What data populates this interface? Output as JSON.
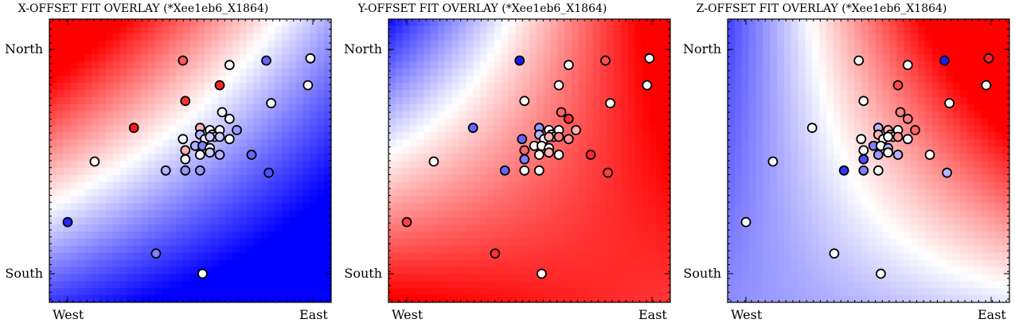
{
  "chart_data": [
    {
      "type": "scatter",
      "title": "X-OFFSET FIT OVERLAY (*Xee1eb6_X1864)",
      "x_ticks": [
        "West",
        "East"
      ],
      "y_ticks": [
        "North",
        "South"
      ],
      "colormap": [
        "#0000ff",
        "#ffffff",
        "#ff0000"
      ],
      "background_field": "blue bottom-left, red top-left, white diagonal band",
      "points": [
        {
          "x": 0.47,
          "y": 0.95,
          "v": 0.65
        },
        {
          "x": 0.66,
          "y": 0.93,
          "v": 0.0
        },
        {
          "x": 0.81,
          "y": 0.95,
          "v": -0.6
        },
        {
          "x": 0.99,
          "y": 0.96,
          "v": 0.0
        },
        {
          "x": 0.62,
          "y": 0.84,
          "v": 0.85
        },
        {
          "x": 0.98,
          "y": 0.84,
          "v": 0.0
        },
        {
          "x": 0.48,
          "y": 0.77,
          "v": 0.8
        },
        {
          "x": 0.83,
          "y": 0.76,
          "v": 0.0
        },
        {
          "x": 0.63,
          "y": 0.72,
          "v": 0.0
        },
        {
          "x": 0.66,
          "y": 0.69,
          "v": 0.0
        },
        {
          "x": 0.27,
          "y": 0.65,
          "v": 0.9
        },
        {
          "x": 0.54,
          "y": 0.65,
          "v": 0.3
        },
        {
          "x": 0.58,
          "y": 0.64,
          "v": 0.0
        },
        {
          "x": 0.62,
          "y": 0.64,
          "v": 0.0
        },
        {
          "x": 0.69,
          "y": 0.64,
          "v": -0.4
        },
        {
          "x": 0.54,
          "y": 0.62,
          "v": -0.3
        },
        {
          "x": 0.59,
          "y": 0.62,
          "v": 0.0
        },
        {
          "x": 0.6,
          "y": 0.61,
          "v": 0.0
        },
        {
          "x": 0.56,
          "y": 0.6,
          "v": 0.0
        },
        {
          "x": 0.58,
          "y": 0.61,
          "v": -0.2
        },
        {
          "x": 0.62,
          "y": 0.61,
          "v": -0.2
        },
        {
          "x": 0.47,
          "y": 0.6,
          "v": 0.0
        },
        {
          "x": 0.66,
          "y": 0.6,
          "v": 0.0
        },
        {
          "x": 0.52,
          "y": 0.57,
          "v": -0.3
        },
        {
          "x": 0.55,
          "y": 0.57,
          "v": -0.5
        },
        {
          "x": 0.58,
          "y": 0.56,
          "v": 0.0
        },
        {
          "x": 0.48,
          "y": 0.55,
          "v": 0.3
        },
        {
          "x": 0.58,
          "y": 0.54,
          "v": -0.2
        },
        {
          "x": 0.54,
          "y": 0.53,
          "v": 0.0
        },
        {
          "x": 0.62,
          "y": 0.53,
          "v": -0.3
        },
        {
          "x": 0.75,
          "y": 0.53,
          "v": -0.6
        },
        {
          "x": 0.48,
          "y": 0.51,
          "v": 0.0
        },
        {
          "x": 0.11,
          "y": 0.5,
          "v": 0.0
        },
        {
          "x": 0.4,
          "y": 0.46,
          "v": -0.3
        },
        {
          "x": 0.48,
          "y": 0.46,
          "v": -0.4
        },
        {
          "x": 0.54,
          "y": 0.46,
          "v": -0.4
        },
        {
          "x": 0.82,
          "y": 0.45,
          "v": -0.7
        },
        {
          "x": 0.0,
          "y": 0.23,
          "v": -0.85
        },
        {
          "x": 0.36,
          "y": 0.09,
          "v": -0.5
        },
        {
          "x": 0.55,
          "y": 0.0,
          "v": 0.0
        }
      ]
    },
    {
      "type": "scatter",
      "title": "Y-OFFSET FIT OVERLAY (*Xee1eb6_X1864)",
      "x_ticks": [
        "West",
        "East"
      ],
      "y_ticks": [
        "North",
        "South"
      ],
      "colormap": [
        "#0000ff",
        "#ffffff",
        "#ff0000"
      ],
      "background_field": "blue top-left, red bottom-left and right, white curved band",
      "points": [
        {
          "x": 0.46,
          "y": 0.95,
          "v": -0.9
        },
        {
          "x": 0.66,
          "y": 0.93,
          "v": 0.0
        },
        {
          "x": 0.81,
          "y": 0.95,
          "v": 0.7
        },
        {
          "x": 0.99,
          "y": 0.96,
          "v": 0.0
        },
        {
          "x": 0.62,
          "y": 0.84,
          "v": 0.0
        },
        {
          "x": 0.98,
          "y": 0.84,
          "v": 0.0
        },
        {
          "x": 0.48,
          "y": 0.77,
          "v": 0.0
        },
        {
          "x": 0.83,
          "y": 0.76,
          "v": 0.0
        },
        {
          "x": 0.63,
          "y": 0.72,
          "v": 0.6
        },
        {
          "x": 0.66,
          "y": 0.69,
          "v": 0.8
        },
        {
          "x": 0.27,
          "y": 0.65,
          "v": -0.6
        },
        {
          "x": 0.54,
          "y": 0.65,
          "v": -0.4
        },
        {
          "x": 0.58,
          "y": 0.64,
          "v": 0.0
        },
        {
          "x": 0.62,
          "y": 0.64,
          "v": 0.0
        },
        {
          "x": 0.69,
          "y": 0.64,
          "v": 0.3
        },
        {
          "x": 0.54,
          "y": 0.62,
          "v": -0.3
        },
        {
          "x": 0.59,
          "y": 0.62,
          "v": 0.0
        },
        {
          "x": 0.6,
          "y": 0.61,
          "v": 0.2
        },
        {
          "x": 0.56,
          "y": 0.6,
          "v": 0.0
        },
        {
          "x": 0.58,
          "y": 0.61,
          "v": 0.3
        },
        {
          "x": 0.62,
          "y": 0.61,
          "v": 0.5
        },
        {
          "x": 0.47,
          "y": 0.6,
          "v": -0.6
        },
        {
          "x": 0.66,
          "y": 0.6,
          "v": 0.4
        },
        {
          "x": 0.52,
          "y": 0.57,
          "v": 0.0
        },
        {
          "x": 0.55,
          "y": 0.57,
          "v": 0.0
        },
        {
          "x": 0.58,
          "y": 0.56,
          "v": 0.0
        },
        {
          "x": 0.48,
          "y": 0.55,
          "v": 0.6
        },
        {
          "x": 0.58,
          "y": 0.54,
          "v": 0.3
        },
        {
          "x": 0.54,
          "y": 0.53,
          "v": 0.0
        },
        {
          "x": 0.62,
          "y": 0.53,
          "v": 0.0
        },
        {
          "x": 0.75,
          "y": 0.53,
          "v": 0.85
        },
        {
          "x": 0.48,
          "y": 0.51,
          "v": -0.5
        },
        {
          "x": 0.11,
          "y": 0.5,
          "v": 0.0
        },
        {
          "x": 0.4,
          "y": 0.46,
          "v": -0.6
        },
        {
          "x": 0.48,
          "y": 0.46,
          "v": 0.0
        },
        {
          "x": 0.54,
          "y": 0.46,
          "v": 0.0
        },
        {
          "x": 0.82,
          "y": 0.45,
          "v": 0.75
        },
        {
          "x": 0.0,
          "y": 0.23,
          "v": 0.75
        },
        {
          "x": 0.36,
          "y": 0.09,
          "v": 0.8
        },
        {
          "x": 0.55,
          "y": 0.0,
          "v": 0.0
        }
      ]
    },
    {
      "type": "scatter",
      "title": "Z-OFFSET FIT OVERLAY (*Xee1eb6_X1864)",
      "x_ticks": [
        "West",
        "East"
      ],
      "y_ticks": [
        "North",
        "South"
      ],
      "colormap": [
        "#0000ff",
        "#ffffff",
        "#ff0000"
      ],
      "background_field": "blue top-left and bottom, red top-right, white diagonal band",
      "points": [
        {
          "x": 0.46,
          "y": 0.95,
          "v": 0.0
        },
        {
          "x": 0.66,
          "y": 0.93,
          "v": 0.0
        },
        {
          "x": 0.81,
          "y": 0.95,
          "v": -0.9
        },
        {
          "x": 0.99,
          "y": 0.96,
          "v": 0.85
        },
        {
          "x": 0.62,
          "y": 0.84,
          "v": 0.7
        },
        {
          "x": 0.98,
          "y": 0.84,
          "v": 0.0
        },
        {
          "x": 0.48,
          "y": 0.77,
          "v": 0.0
        },
        {
          "x": 0.83,
          "y": 0.76,
          "v": 0.0
        },
        {
          "x": 0.63,
          "y": 0.72,
          "v": 0.5
        },
        {
          "x": 0.66,
          "y": 0.69,
          "v": 0.5
        },
        {
          "x": 0.27,
          "y": 0.65,
          "v": 0.0
        },
        {
          "x": 0.54,
          "y": 0.65,
          "v": -0.3
        },
        {
          "x": 0.58,
          "y": 0.64,
          "v": 0.3
        },
        {
          "x": 0.62,
          "y": 0.64,
          "v": 0.0
        },
        {
          "x": 0.69,
          "y": 0.64,
          "v": 0.6
        },
        {
          "x": 0.54,
          "y": 0.62,
          "v": 0.3
        },
        {
          "x": 0.59,
          "y": 0.62,
          "v": 0.3
        },
        {
          "x": 0.6,
          "y": 0.61,
          "v": 0.0
        },
        {
          "x": 0.56,
          "y": 0.6,
          "v": 0.0
        },
        {
          "x": 0.58,
          "y": 0.61,
          "v": 0.0
        },
        {
          "x": 0.62,
          "y": 0.61,
          "v": 0.4
        },
        {
          "x": 0.47,
          "y": 0.6,
          "v": 0.0
        },
        {
          "x": 0.66,
          "y": 0.6,
          "v": 0.0
        },
        {
          "x": 0.52,
          "y": 0.57,
          "v": -0.5
        },
        {
          "x": 0.55,
          "y": 0.57,
          "v": 0.0
        },
        {
          "x": 0.58,
          "y": 0.56,
          "v": -0.3
        },
        {
          "x": 0.48,
          "y": 0.55,
          "v": 0.0
        },
        {
          "x": 0.58,
          "y": 0.54,
          "v": 0.0
        },
        {
          "x": 0.54,
          "y": 0.53,
          "v": -0.4
        },
        {
          "x": 0.62,
          "y": 0.53,
          "v": -0.3
        },
        {
          "x": 0.75,
          "y": 0.53,
          "v": 0.0
        },
        {
          "x": 0.48,
          "y": 0.51,
          "v": -0.7
        },
        {
          "x": 0.11,
          "y": 0.5,
          "v": 0.0
        },
        {
          "x": 0.4,
          "y": 0.46,
          "v": -0.8
        },
        {
          "x": 0.48,
          "y": 0.46,
          "v": -0.5
        },
        {
          "x": 0.54,
          "y": 0.46,
          "v": 0.0
        },
        {
          "x": 0.82,
          "y": 0.45,
          "v": -0.3
        },
        {
          "x": 0.0,
          "y": 0.23,
          "v": 0.0
        },
        {
          "x": 0.36,
          "y": 0.09,
          "v": 0.0
        },
        {
          "x": 0.55,
          "y": 0.0,
          "v": 0.0
        }
      ]
    }
  ]
}
